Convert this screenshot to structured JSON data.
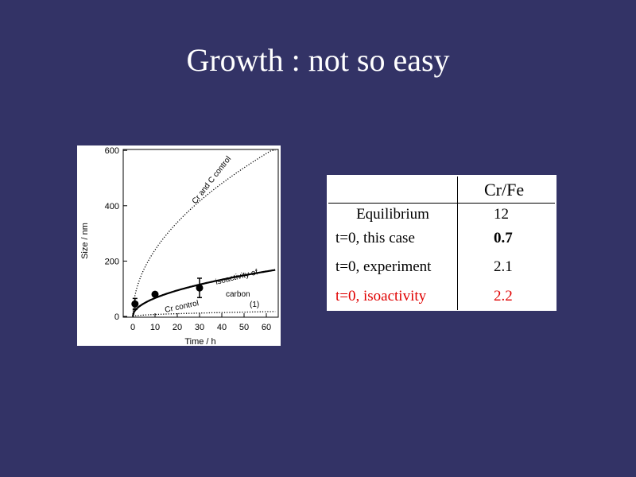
{
  "slide": {
    "title": "Growth : not so easy"
  },
  "figure": {
    "ylabel": "Size / nm",
    "xlabel": "Time / h",
    "y_ticks": [
      "600",
      "400",
      "200",
      "0"
    ],
    "x_ticks": [
      "0",
      "10",
      "20",
      "30",
      "40",
      "50",
      "60"
    ],
    "label_cr_c": "Cr and C control",
    "label_iso_1": "isoactivity of",
    "label_iso_2": "carbon",
    "label_cr": "Cr control",
    "label_marker": "(1)"
  },
  "chart_data": {
    "type": "scatter",
    "xlabel": "Time / h",
    "ylabel": "Size / nm",
    "xlim": [
      0,
      64
    ],
    "ylim": [
      0,
      600
    ],
    "x_ticks": [
      0,
      10,
      20,
      30,
      40,
      50,
      60
    ],
    "y_ticks": [
      0,
      200,
      400,
      600
    ],
    "grid": false,
    "points": [
      {
        "x": 1,
        "y": 45,
        "err": 20
      },
      {
        "x": 10,
        "y": 80,
        "err": 0
      },
      {
        "x": 30,
        "y": 103,
        "err": 35
      }
    ],
    "curves": [
      {
        "name": "Cr and C control",
        "style": "dotted",
        "k": 76
      },
      {
        "name": "isoactivity of carbon",
        "style": "solid",
        "k": 21
      },
      {
        "name": "Cr control",
        "style": "dotted",
        "k": 2.2
      }
    ],
    "curve_model": "y = k * sqrt(x)"
  },
  "table": {
    "header": "Cr/Fe",
    "rows": [
      {
        "label": "Equilibrium",
        "value": "12",
        "emphasis": "normal",
        "color": "#000000"
      },
      {
        "label": "t=0, this case",
        "value": "0.7",
        "emphasis": "bold",
        "color": "#000000"
      },
      {
        "label": "t=0, experiment",
        "value": "2.1",
        "emphasis": "normal",
        "color": "#000000"
      },
      {
        "label": "t=0, isoactivity",
        "value": "2.2",
        "emphasis": "normal",
        "color": "#e00000"
      }
    ]
  },
  "colors": {
    "background": "#333366",
    "title_text": "#ffffff",
    "highlight_red": "#e00000"
  }
}
